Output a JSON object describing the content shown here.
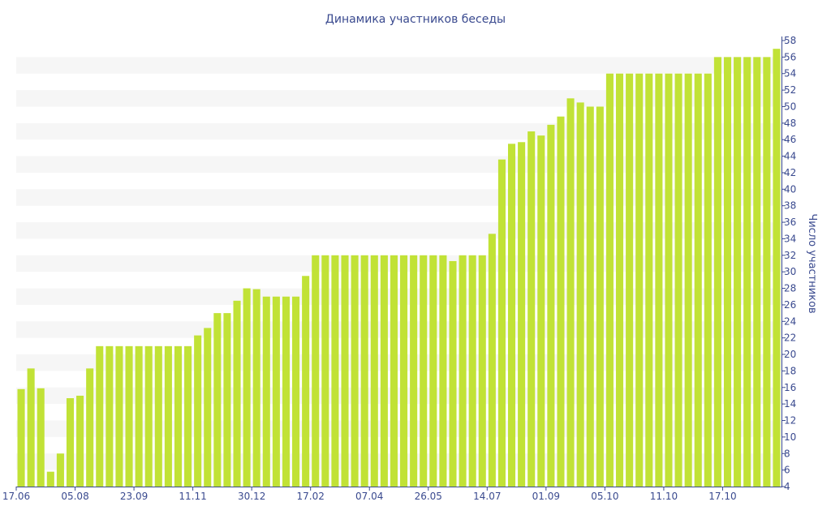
{
  "chart_data": {
    "type": "bar",
    "title": "Динамика участников беседы",
    "xlabel": "",
    "ylabel": "Число участников",
    "ylim": [
      4,
      58
    ],
    "yticks": [
      4,
      6,
      8,
      10,
      12,
      14,
      16,
      18,
      20,
      22,
      24,
      26,
      28,
      30,
      32,
      34,
      36,
      38,
      40,
      42,
      44,
      46,
      48,
      50,
      52,
      54,
      56,
      58
    ],
    "y_axis_side": "right",
    "grid": "alternating horizontal bands",
    "x_tick_labels": [
      {
        "label": "17.06",
        "index": 0
      },
      {
        "label": "05.08",
        "index": 6
      },
      {
        "label": "23.09",
        "index": 12
      },
      {
        "label": "11.11",
        "index": 18
      },
      {
        "label": "30.12",
        "index": 24
      },
      {
        "label": "17.02",
        "index": 30
      },
      {
        "label": "07.04",
        "index": 36
      },
      {
        "label": "26.05",
        "index": 42
      },
      {
        "label": "14.07",
        "index": 48
      },
      {
        "label": "01.09",
        "index": 54
      },
      {
        "label": "05.10",
        "index": 60
      },
      {
        "label": "11.10",
        "index": 66
      },
      {
        "label": "17.10",
        "index": 72
      }
    ],
    "values": [
      15.8,
      18.3,
      15.9,
      5.8,
      8.0,
      14.7,
      15.0,
      18.3,
      21,
      21,
      21,
      21,
      21,
      21,
      21,
      21,
      21,
      21,
      22.3,
      23.2,
      25,
      25,
      26.5,
      28,
      27.9,
      27,
      27,
      27,
      27,
      29.5,
      32,
      32,
      32,
      32,
      32,
      32,
      32,
      32,
      32,
      32,
      32,
      32,
      32,
      32,
      31.3,
      32,
      32,
      32,
      34.6,
      43.6,
      45.5,
      45.7,
      47,
      46.5,
      47.8,
      48.8,
      51,
      50.5,
      50,
      50,
      54,
      54,
      54,
      54,
      54,
      54,
      54,
      54,
      54,
      54,
      54,
      56,
      56,
      56,
      56,
      56,
      56,
      57
    ],
    "bar_color": "#c1e236",
    "band_color": "#f6f6f6",
    "text_color": "#3a4a8f"
  }
}
